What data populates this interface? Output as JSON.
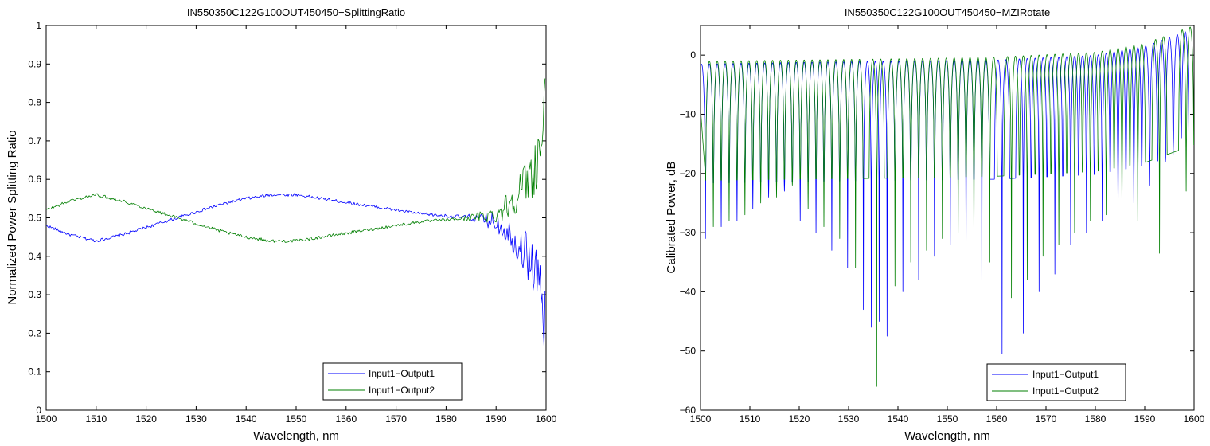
{
  "chart_data": [
    {
      "type": "line",
      "title": "IN550350C122G100OUT450450−SplittingRatio",
      "xlabel": "Wavelength, nm",
      "ylabel": "Normalized Power Splitting Ratio",
      "xlim": [
        1500,
        1600
      ],
      "ylim": [
        0,
        1
      ],
      "xticks": [
        "1500",
        "1510",
        "1520",
        "1530",
        "1540",
        "1550",
        "1560",
        "1570",
        "1580",
        "1590",
        "1600"
      ],
      "yticks": [
        "0",
        "0.1",
        "0.2",
        "0.3",
        "0.4",
        "0.5",
        "0.6",
        "0.7",
        "0.8",
        "0.9",
        "1"
      ],
      "grid": false,
      "legend_position": "bottom-right",
      "series": [
        {
          "name": "Input1−Output1",
          "color": "#0000ff",
          "x": [
            1500,
            1505,
            1510,
            1515,
            1520,
            1525,
            1530,
            1535,
            1540,
            1545,
            1550,
            1555,
            1560,
            1565,
            1570,
            1575,
            1580,
            1585,
            1590,
            1592,
            1594,
            1596,
            1598,
            1599,
            1600
          ],
          "y": [
            0.48,
            0.455,
            0.44,
            0.455,
            0.475,
            0.495,
            0.515,
            0.535,
            0.55,
            0.56,
            0.56,
            0.55,
            0.54,
            0.53,
            0.52,
            0.51,
            0.505,
            0.5,
            0.49,
            0.47,
            0.44,
            0.41,
            0.36,
            0.3,
            0.2
          ]
        },
        {
          "name": "Input1−Output2",
          "color": "#007f00",
          "x": [
            1500,
            1505,
            1510,
            1515,
            1520,
            1525,
            1530,
            1535,
            1540,
            1545,
            1550,
            1555,
            1560,
            1565,
            1570,
            1575,
            1580,
            1585,
            1590,
            1592,
            1594,
            1596,
            1598,
            1599,
            1600
          ],
          "y": [
            0.52,
            0.545,
            0.56,
            0.545,
            0.525,
            0.505,
            0.485,
            0.465,
            0.45,
            0.44,
            0.44,
            0.45,
            0.46,
            0.47,
            0.48,
            0.49,
            0.495,
            0.5,
            0.51,
            0.53,
            0.56,
            0.59,
            0.64,
            0.7,
            0.8
          ]
        }
      ]
    },
    {
      "type": "line",
      "title": "IN550350C122G100OUT450450−MZIRotate",
      "xlabel": "Wavelength, nm",
      "ylabel": "Calibrated Power, dB",
      "xlim": [
        1500,
        1600
      ],
      "ylim": [
        -60,
        5
      ],
      "xticks": [
        "1500",
        "1510",
        "1520",
        "1530",
        "1540",
        "1550",
        "1560",
        "1570",
        "1580",
        "1590",
        "1600"
      ],
      "yticks": [
        "−60",
        "−50",
        "−40",
        "−30",
        "−20",
        "−10",
        "0"
      ],
      "ytick_values": [
        -60,
        -50,
        -40,
        -30,
        -20,
        -10,
        0
      ],
      "grid": false,
      "legend_position": "bottom-right",
      "fringe_period_nm": 1.6,
      "series": [
        {
          "name": "Input1−Output1",
          "color": "#0000ff",
          "peak_x": [
            1500,
            1520,
            1540,
            1560,
            1580,
            1590,
            1595,
            1600
          ],
          "peak_y": [
            -1.5,
            -1.2,
            -1.0,
            -0.8,
            0.0,
            1.5,
            3.0,
            4.5
          ],
          "notch_x": [
            1501.0,
            1504.2,
            1507.4,
            1510.6,
            1513.8,
            1517.0,
            1520.2,
            1523.4,
            1526.6,
            1529.8,
            1533.0,
            1534.6,
            1536.2,
            1537.8,
            1541.0,
            1544.2,
            1547.4,
            1550.6,
            1553.8,
            1557.0,
            1561.1,
            1565.4,
            1568.6,
            1571.8,
            1575.0,
            1578.2,
            1581.4,
            1584.6,
            1587.8,
            1591.0,
            1594.2,
            1597.4
          ],
          "notch_y": [
            -31,
            -29,
            -28,
            -26,
            -24,
            -23,
            -28,
            -30,
            -33,
            -36,
            -43,
            -46,
            -45,
            -47.5,
            -40,
            -38,
            -34,
            -32,
            -33,
            -38,
            -50.5,
            -47,
            -40,
            -37,
            -32,
            -30,
            -28,
            -26,
            -25,
            -22,
            -18,
            -14
          ]
        },
        {
          "name": "Input1−Output2",
          "color": "#007f00",
          "peak_x": [
            1500,
            1520,
            1540,
            1560,
            1580,
            1590,
            1595,
            1600
          ],
          "peak_y": [
            -1.0,
            -0.8,
            -0.6,
            -0.3,
            0.5,
            2.0,
            3.5,
            5.0
          ],
          "notch_x": [
            1502.6,
            1505.8,
            1509.0,
            1512.2,
            1515.4,
            1518.6,
            1521.8,
            1525.0,
            1528.2,
            1531.4,
            1535.7,
            1539.4,
            1542.6,
            1545.8,
            1549.0,
            1552.2,
            1555.4,
            1558.6,
            1563.0,
            1566.2,
            1569.4,
            1572.6,
            1575.8,
            1579.0,
            1582.2,
            1585.4,
            1588.6,
            1593.0,
            1598.4
          ],
          "notch_y": [
            -29,
            -28,
            -27,
            -25,
            -24,
            -22,
            -26,
            -29,
            -31,
            -36,
            -56,
            -39,
            -35,
            -33,
            -31,
            -30,
            -32,
            -35,
            -41,
            -38,
            -34,
            -32,
            -30,
            -28,
            -27,
            -26,
            -28,
            -33.5,
            -23
          ]
        }
      ]
    }
  ]
}
